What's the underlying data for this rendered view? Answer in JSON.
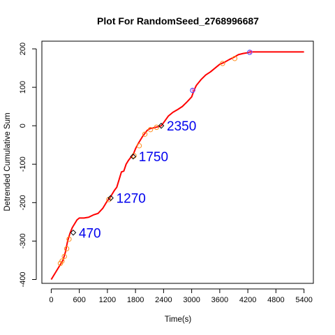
{
  "chart_data": {
    "type": "line",
    "title": "Plot For RandomSeed_2768996687",
    "xlabel": "Time(s)",
    "ylabel": "Detrended Cumulative Sum",
    "xlim": [
      -200,
      5600
    ],
    "ylim": [
      -410,
      220
    ],
    "xticks": [
      0,
      600,
      1200,
      1800,
      2400,
      3000,
      3600,
      4200,
      4800,
      5400
    ],
    "yticks": [
      -400,
      -300,
      -200,
      -100,
      0,
      100,
      200
    ],
    "grid": false,
    "legend": "none",
    "series": [
      {
        "color": "#ff0000",
        "x": [
          0,
          100,
          200,
          250,
          300,
          350,
          400,
          450,
          500,
          550,
          600,
          650,
          700,
          800,
          900,
          1000,
          1100,
          1150,
          1200,
          1250,
          1300,
          1350,
          1400,
          1450,
          1500,
          1550,
          1600,
          1650,
          1700,
          1750,
          1800,
          1850,
          1900,
          1950,
          2000,
          2050,
          2100,
          2200,
          2300,
          2350,
          2400,
          2500,
          2600,
          2700,
          2800,
          2900,
          3000,
          3050,
          3100,
          3200,
          3300,
          3400,
          3500,
          3600,
          3700,
          3800,
          3900,
          4000,
          4100,
          4200,
          4250,
          4300,
          4400,
          4500,
          4600,
          4700,
          4800,
          4900,
          5000,
          5100,
          5200,
          5300,
          5400
        ],
        "values": [
          -400,
          -380,
          -360,
          -350,
          -330,
          -300,
          -280,
          -265,
          -255,
          -245,
          -240,
          -240,
          -240,
          -238,
          -232,
          -228,
          -215,
          -205,
          -195,
          -188,
          -178,
          -168,
          -160,
          -140,
          -120,
          -118,
          -100,
          -90,
          -82,
          -75,
          -60,
          -48,
          -38,
          -28,
          -20,
          -12,
          -8,
          -5,
          -2,
          0,
          8,
          25,
          35,
          42,
          50,
          62,
          75,
          92,
          105,
          120,
          132,
          140,
          150,
          160,
          165,
          172,
          178,
          185,
          188,
          190,
          192,
          192,
          192,
          192,
          192,
          192,
          192,
          192,
          192,
          192,
          192,
          192,
          192
        ]
      }
    ],
    "markers_orange": [
      {
        "x": 195,
        "y": -358
      },
      {
        "x": 230,
        "y": -352
      },
      {
        "x": 280,
        "y": -340
      },
      {
        "x": 330,
        "y": -320
      },
      {
        "x": 380,
        "y": -295
      },
      {
        "x": 1230,
        "y": -192
      },
      {
        "x": 1770,
        "y": -78
      },
      {
        "x": 1880,
        "y": -52
      },
      {
        "x": 2000,
        "y": -22
      },
      {
        "x": 2120,
        "y": -10
      },
      {
        "x": 2250,
        "y": -4
      },
      {
        "x": 3660,
        "y": 162
      },
      {
        "x": 3920,
        "y": 175
      }
    ],
    "markers_purple": [
      {
        "x": 3020,
        "y": 92
      },
      {
        "x": 4240,
        "y": 191
      }
    ],
    "markers_diamond": [
      {
        "x": 470,
        "y": -278
      },
      {
        "x": 1270,
        "y": -188
      },
      {
        "x": 1750,
        "y": -80
      },
      {
        "x": 2350,
        "y": 0
      }
    ],
    "annotations": [
      {
        "text": "470",
        "x": 470,
        "y": -278
      },
      {
        "text": "1270",
        "x": 1270,
        "y": -188
      },
      {
        "text": "1750",
        "x": 1750,
        "y": -80
      },
      {
        "text": "2350",
        "x": 2350,
        "y": 0
      }
    ]
  },
  "colors": {
    "line": "#ff0000",
    "marker_orange": "#ff8c1a",
    "marker_purple": "#cc44cc",
    "marker_blue": "#4444ff",
    "diamond": "#000000",
    "annotation": "#0000ee"
  }
}
